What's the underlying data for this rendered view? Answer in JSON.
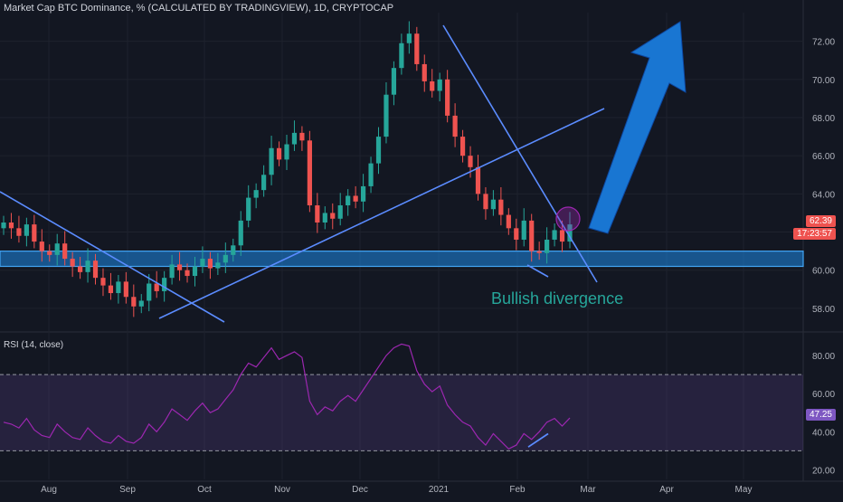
{
  "header": {
    "title": "Market Cap BTC Dominance, % (CALCULATED BY TRADINGVIEW), 1D, CRYPTOCAP"
  },
  "rsi_panel": {
    "label": "RSI (14, close)"
  },
  "price_scale": {
    "ticks": [
      "72.00",
      "70.00",
      "68.00",
      "66.00",
      "64.00",
      "62.00",
      "60.00",
      "58.00"
    ],
    "current_price": "62.39",
    "countdown": "17:23:57"
  },
  "rsi_scale": {
    "ticks": [
      "80.00",
      "60.00",
      "40.00",
      "20.00"
    ],
    "current": "47.25"
  },
  "time_axis": {
    "labels": [
      "Aug",
      "Sep",
      "Oct",
      "Nov",
      "Dec",
      "2021",
      "Feb",
      "Mar",
      "Apr",
      "May"
    ]
  },
  "annotation": {
    "text": "Bullish divergence"
  },
  "colors": {
    "background": "#131722",
    "up_candle": "#26a69a",
    "down_candle": "#ef5350",
    "trendline": "#2962ff",
    "support_zone": "#1e88e5",
    "rsi_line": "#9c27b0",
    "rsi_band": "#7e57c2",
    "big_arrow": "#1976d2"
  },
  "chart_data": [
    {
      "type": "line",
      "title": "Market Cap BTC Dominance, % (CALCULATED BY TRADINGVIEW), 1D, CRYPTOCAP",
      "x_labels": [
        "Aug",
        "Sep",
        "Oct",
        "Nov",
        "Dec",
        "2021",
        "Feb",
        "Mar",
        "Apr",
        "May"
      ],
      "ylim": [
        57,
        73.5
      ],
      "series": [
        {
          "values": [
            62.5,
            62.2,
            61.8,
            62.4,
            61.5,
            61.0,
            60.8,
            61.4,
            60.6,
            60.2,
            59.9,
            60.5,
            59.6,
            59.2,
            58.8,
            59.4,
            58.6,
            58.1,
            58.4,
            59.3,
            58.9,
            59.6,
            60.3,
            60.0,
            59.7,
            60.2,
            60.6,
            60.1,
            60.4,
            60.8,
            61.3,
            62.6,
            63.8,
            64.2,
            65.0,
            66.4,
            65.8,
            66.6,
            67.2,
            66.8,
            63.4,
            62.5,
            63.0,
            62.7,
            63.4,
            63.9,
            63.6,
            64.4,
            65.6,
            67.0,
            69.2,
            70.6,
            71.9,
            72.4,
            70.8,
            69.9,
            69.4,
            70.0,
            68.1,
            67.0,
            66.0,
            65.4,
            64.0,
            63.2,
            63.7,
            62.9,
            62.2,
            61.6,
            62.6,
            61.0,
            60.9,
            61.6,
            62.1,
            61.5,
            62.4
          ],
          "candle_colors_alternate": true
        }
      ],
      "horizontal_zone": {
        "from": 60.2,
        "to": 61.0
      }
    },
    {
      "type": "line",
      "title": "RSI (14, close)",
      "ylim": [
        15,
        90
      ],
      "bands": [
        30,
        70
      ],
      "series": [
        {
          "values": [
            45,
            44,
            42,
            47,
            41,
            38,
            37,
            44,
            40,
            37,
            36,
            42,
            38,
            35,
            34,
            38,
            35,
            34,
            37,
            44,
            40,
            45,
            52,
            49,
            46,
            51,
            55,
            50,
            52,
            57,
            62,
            70,
            76,
            74,
            79,
            84,
            78,
            80,
            82,
            79,
            56,
            49,
            53,
            51,
            56,
            59,
            56,
            62,
            68,
            74,
            80,
            84,
            86,
            85,
            72,
            65,
            61,
            64,
            54,
            49,
            45,
            43,
            37,
            33,
            39,
            35,
            31,
            33,
            39,
            36,
            40,
            45,
            47,
            43,
            47.25
          ]
        }
      ]
    }
  ]
}
